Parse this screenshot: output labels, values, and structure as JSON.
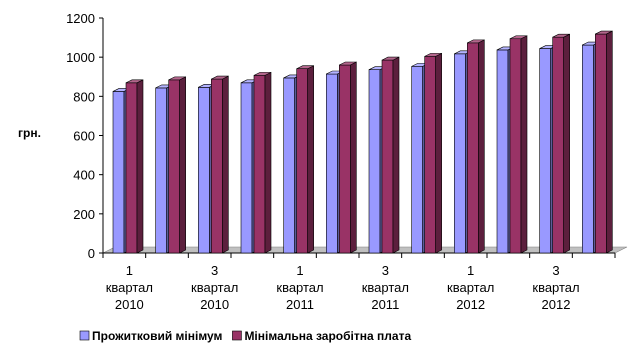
{
  "chart_data": {
    "type": "bar",
    "style": "3d-clustered-column",
    "ylabel": "грн.",
    "ylim": [
      0,
      1200
    ],
    "yticks": [
      "0",
      "200",
      "400",
      "600",
      "800",
      "1000",
      "1200"
    ],
    "grid": false,
    "legend_position": "bottom",
    "category_labels": [
      {
        "line1": "1",
        "line2": "квартал",
        "line3": "2010"
      },
      {
        "line1": "3",
        "line2": "квартал",
        "line3": "2010"
      },
      {
        "line1": "1",
        "line2": "квартал",
        "line3": "2011"
      },
      {
        "line1": "3",
        "line2": "квартал",
        "line3": "2011"
      },
      {
        "line1": "1",
        "line2": "квартал",
        "line3": "2012"
      },
      {
        "line1": "3",
        "line2": "квартал",
        "line3": "2012"
      }
    ],
    "series": [
      {
        "name": "Прожитковий мінімум",
        "color": "#9999ff",
        "values": [
          825,
          843,
          846,
          869,
          894,
          914,
          936,
          953,
          1017,
          1037,
          1044,
          1062
        ]
      },
      {
        "name": "Мінімальна заробітна плата",
        "color": "#993366",
        "values": [
          869,
          884,
          888,
          907,
          941,
          960,
          985,
          1004,
          1073,
          1094,
          1102,
          1118
        ]
      }
    ]
  }
}
